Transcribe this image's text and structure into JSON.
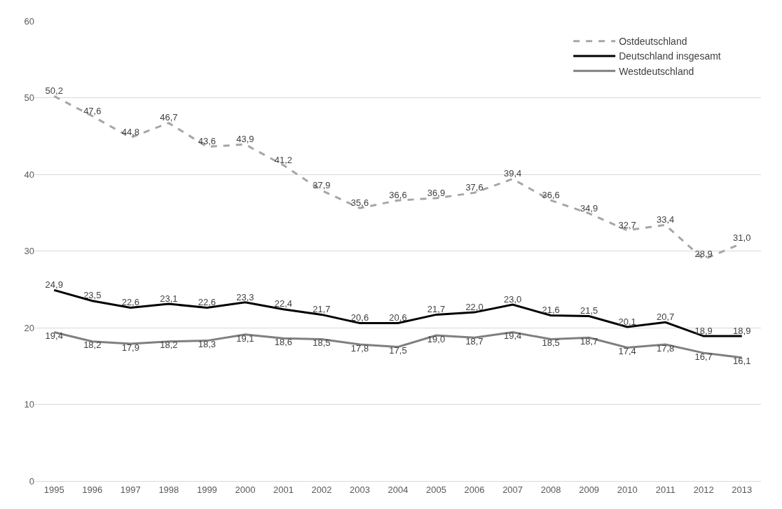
{
  "chart_data": {
    "type": "line",
    "categories": [
      "1995",
      "1996",
      "1997",
      "1998",
      "1999",
      "2000",
      "2001",
      "2002",
      "2003",
      "2004",
      "2005",
      "2006",
      "2007",
      "2008",
      "2009",
      "2010",
      "2011",
      "2012",
      "2013"
    ],
    "series": [
      {
        "name": "Ostdeutschland",
        "color": "#a6a6a6",
        "line_style": "dashed",
        "values": [
          50.2,
          47.6,
          44.8,
          46.7,
          43.6,
          43.9,
          41.2,
          37.9,
          35.6,
          36.6,
          36.9,
          37.6,
          39.4,
          36.6,
          34.9,
          32.7,
          33.4,
          28.9,
          31.0
        ],
        "value_labels": [
          "50,2",
          "47,6",
          "44,8",
          "46,7",
          "43,6",
          "43,9",
          "41,2",
          "37,9",
          "35,6",
          "36,6",
          "36,9",
          "37,6",
          "39,4",
          "36,6",
          "34,9",
          "32,7",
          "33,4",
          "28,9",
          "31,0"
        ]
      },
      {
        "name": "Deutschland insgesamt",
        "color": "#000000",
        "line_style": "solid",
        "values": [
          24.9,
          23.5,
          22.6,
          23.1,
          22.6,
          23.3,
          22.4,
          21.7,
          20.6,
          20.6,
          21.7,
          22.0,
          23.0,
          21.6,
          21.5,
          20.1,
          20.7,
          18.9,
          18.9
        ],
        "value_labels": [
          "24,9",
          "23,5",
          "22,6",
          "23,1",
          "22,6",
          "23,3",
          "22,4",
          "21,7",
          "20,6",
          "20,6",
          "21,7",
          "22,0",
          "23,0",
          "21,6",
          "21,5",
          "20,1",
          "20,7",
          "18,9",
          "18,9"
        ]
      },
      {
        "name": "Westdeutschland",
        "color": "#7f7f7f",
        "line_style": "solid",
        "values": [
          19.4,
          18.2,
          17.9,
          18.2,
          18.3,
          19.1,
          18.6,
          18.5,
          17.8,
          17.5,
          19.0,
          18.7,
          19.4,
          18.5,
          18.7,
          17.4,
          17.8,
          16.7,
          16.1
        ],
        "value_labels": [
          "19,4",
          "18,2",
          "17,9",
          "18,2",
          "18,3",
          "19,1",
          "18,6",
          "18,5",
          "17,8",
          "17,5",
          "19,0",
          "18,7",
          "19,4",
          "18,5",
          "18,7",
          "17,4",
          "17,8",
          "16,7",
          "16,1"
        ]
      }
    ],
    "ylim": [
      0,
      60
    ],
    "yticks": [
      0,
      10,
      20,
      30,
      40,
      50,
      60
    ],
    "grid": "y",
    "legend": "top right",
    "marker": "none"
  }
}
